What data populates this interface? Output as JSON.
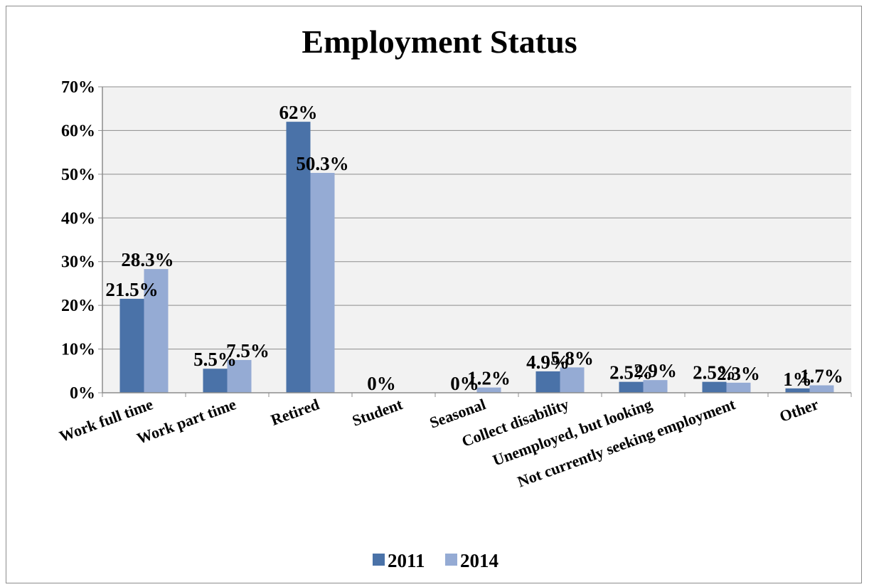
{
  "chart_data": {
    "type": "bar",
    "title": "Employment Status",
    "categories": [
      "Work full time",
      "Work part time",
      "Retired",
      "Student",
      "Seasonal",
      "Collect disability",
      "Unemployed, but looking",
      "Not currently seeking employment",
      "Other"
    ],
    "series": [
      {
        "name": "2011",
        "color": "#4a72a8",
        "values": [
          21.5,
          5.5,
          62,
          0,
          0,
          4.9,
          2.5,
          2.5,
          1
        ],
        "labels": [
          "21.5%",
          "5.5%",
          "62%",
          "0%",
          "0%",
          "4.9%",
          "2.5%",
          "2.5%",
          "1%"
        ]
      },
      {
        "name": "2014",
        "color": "#95abd4",
        "values": [
          28.3,
          7.5,
          50.3,
          0,
          1.2,
          5.8,
          2.9,
          2.3,
          1.7
        ],
        "labels": [
          "28.3%",
          "7.5%",
          "50.3%",
          "",
          "1.2%",
          "5.8%",
          "2.9%",
          "2.3%",
          "1.7%"
        ]
      }
    ],
    "y_ticks": [
      "0%",
      "10%",
      "20%",
      "30%",
      "40%",
      "50%",
      "60%",
      "70%"
    ],
    "ylim": [
      0,
      70
    ],
    "grid": true,
    "legend_position": "bottom"
  }
}
